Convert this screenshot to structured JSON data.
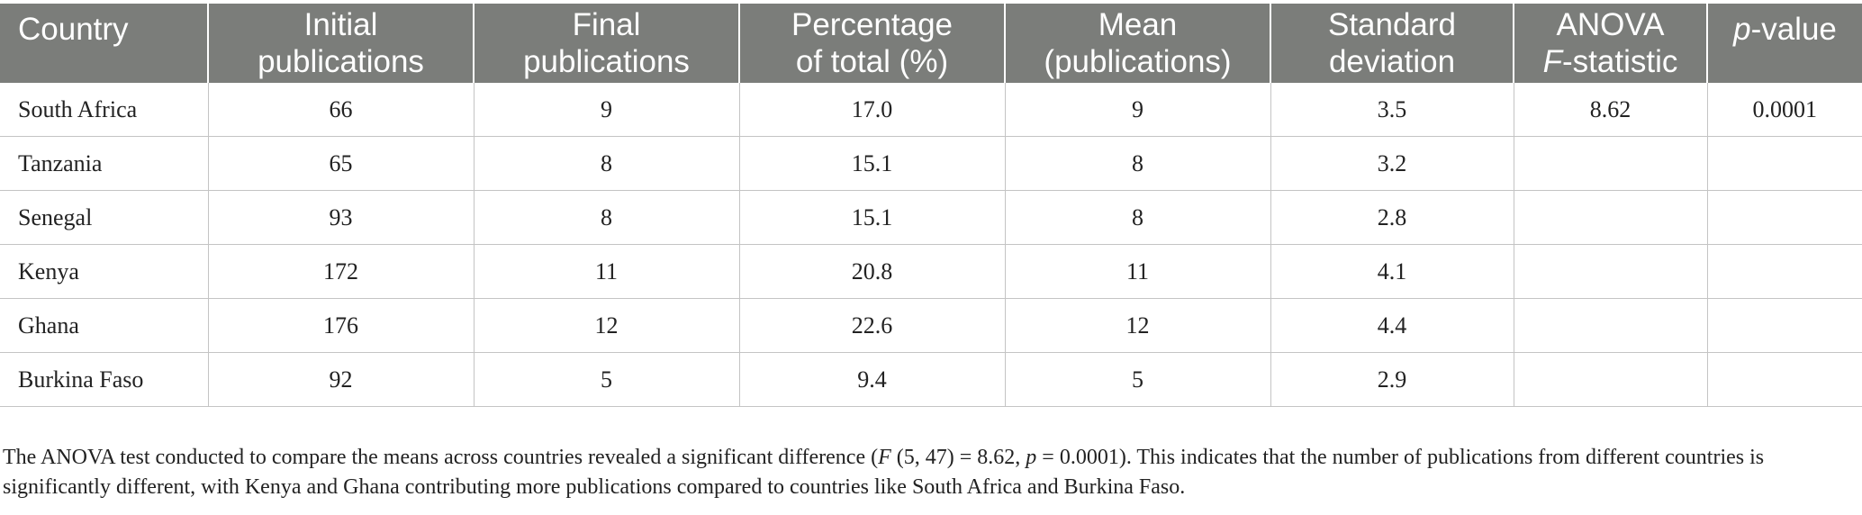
{
  "table": {
    "headers": [
      {
        "line1": "Country",
        "line2": ""
      },
      {
        "line1": "Initial",
        "line2": "publications"
      },
      {
        "line1": "Final",
        "line2": "publications"
      },
      {
        "line1": "Percentage",
        "line2": "of total (%)"
      },
      {
        "line1": "Mean",
        "line2": "(publications)"
      },
      {
        "line1": "Standard",
        "line2": "deviation"
      },
      {
        "line1": "ANOVA",
        "line2_italic": "F",
        "line2_rest": "-statistic"
      },
      {
        "line1_italic": "p",
        "line1_rest": "-value"
      }
    ],
    "rows": [
      [
        "South Africa",
        "66",
        "9",
        "17.0",
        "9",
        "3.5",
        "8.62",
        "0.0001"
      ],
      [
        "Tanzania",
        "65",
        "8",
        "15.1",
        "8",
        "3.2",
        "",
        ""
      ],
      [
        "Senegal",
        "93",
        "8",
        "15.1",
        "8",
        "2.8",
        "",
        ""
      ],
      [
        "Kenya",
        "172",
        "11",
        "20.8",
        "11",
        "4.1",
        "",
        ""
      ],
      [
        "Ghana",
        "176",
        "12",
        "22.6",
        "12",
        "4.4",
        "",
        ""
      ],
      [
        "Burkina Faso",
        "92",
        "5",
        "9.4",
        "5",
        "2.9",
        "",
        ""
      ]
    ]
  },
  "footnote": {
    "part1": "The ANOVA test conducted to compare the means across countries revealed a significant difference (",
    "f_symbol": "F",
    "part2": " (5, 47) = 8.62, ",
    "p_symbol": "p",
    "part3": " = 0.0001). This indicates that the number of publications from different countries is significantly different, with Kenya and Ghana contributing more publications compared to countries like South Africa and Burkina Faso."
  },
  "colors": {
    "header_bg": "#7b7d7a",
    "header_text": "#ffffff",
    "grid_line": "#c4c4c4",
    "body_text": "#222222"
  }
}
